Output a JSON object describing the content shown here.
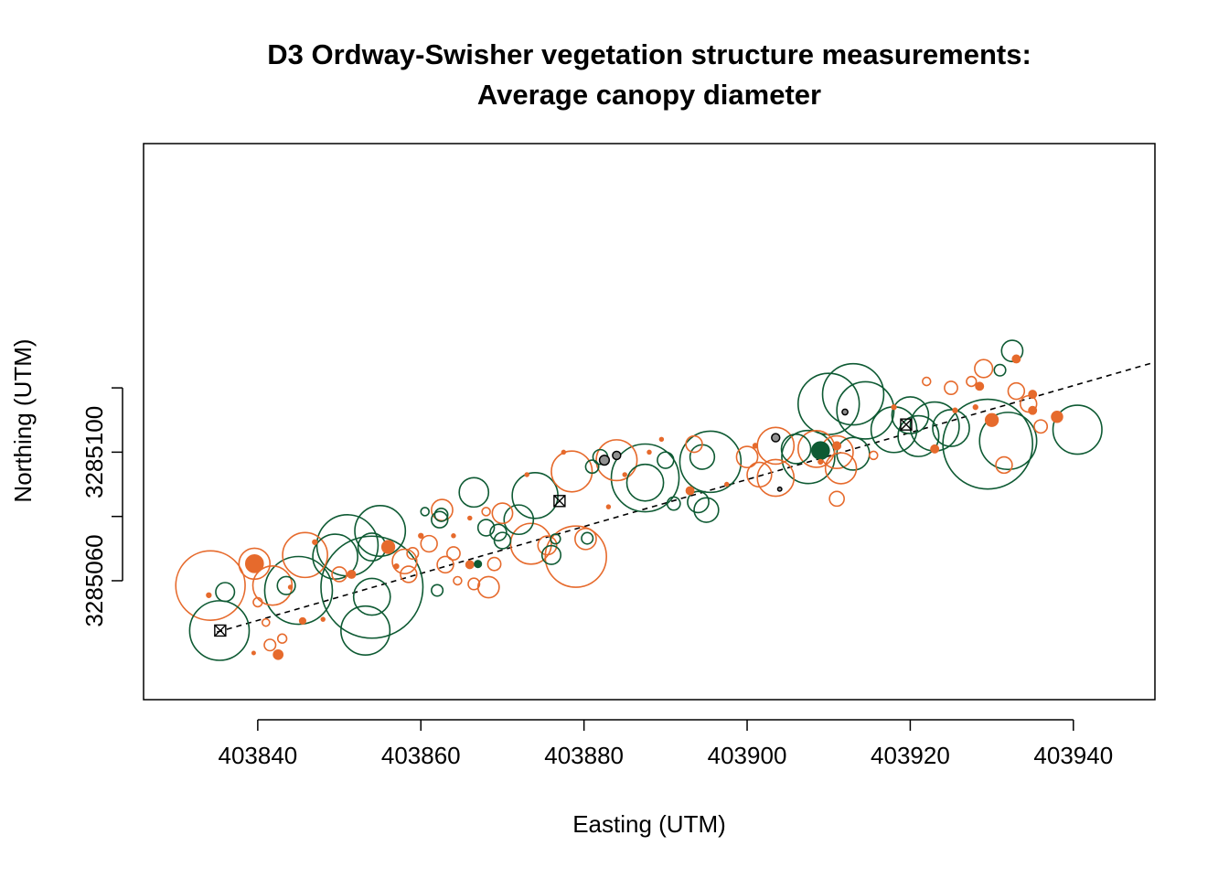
{
  "chart_data": {
    "type": "scatter",
    "title": "D3 Ordway-Swisher vegetation structure measurements:",
    "subtitle": "Average canopy diameter",
    "xlabel": "Easting (UTM)",
    "ylabel": "Northing (UTM)",
    "xlim": [
      403826,
      403950
    ],
    "ylim": [
      3285023,
      3285196
    ],
    "xticks": [
      "403840",
      "403860",
      "403880",
      "403900",
      "403920",
      "403940"
    ],
    "yticks": [
      "3285060",
      "3285100"
    ],
    "yticks_unlabeled": [
      3285080,
      3285120
    ],
    "grid": false,
    "colors": {
      "orange": "#E66A2C",
      "green": "#0E5A33",
      "grey": "#909090",
      "outline": "#000000"
    },
    "transect_line": {
      "x": [
        403835,
        403950
      ],
      "y": [
        3285044,
        3285128
      ],
      "style": "dashed"
    },
    "transect_markers": [
      {
        "x": 403835.4,
        "y": 3285044.5
      },
      {
        "x": 403877.0,
        "y": 3285084.8
      },
      {
        "x": 403919.5,
        "y": 3285108.6
      }
    ],
    "points": [
      {
        "x": 403835.3,
        "y": 3285044.5,
        "d": 7.3,
        "c": "green"
      },
      {
        "x": 403834.2,
        "y": 3285058.5,
        "d": 8.5,
        "c": "orange"
      },
      {
        "x": 403836.0,
        "y": 3285056.5,
        "d": 2.3,
        "c": "green"
      },
      {
        "x": 403834.0,
        "y": 3285055.5,
        "d": 0.6,
        "c": "orange",
        "f": 1
      },
      {
        "x": 403839.6,
        "y": 3285065.3,
        "d": 2.2,
        "c": "orange",
        "f": 1
      },
      {
        "x": 403839.6,
        "y": 3285065.3,
        "d": 3.8,
        "c": "orange"
      },
      {
        "x": 403841.8,
        "y": 3285058.5,
        "d": 4.8,
        "c": "orange"
      },
      {
        "x": 403843.5,
        "y": 3285058.5,
        "d": 2.2,
        "c": "green"
      },
      {
        "x": 403845.8,
        "y": 3285068.0,
        "d": 5.5,
        "c": "orange"
      },
      {
        "x": 403845.0,
        "y": 3285057.0,
        "d": 8.3,
        "c": "green"
      },
      {
        "x": 403840.0,
        "y": 3285053.3,
        "d": 1.1,
        "c": "orange"
      },
      {
        "x": 403841.0,
        "y": 3285047.0,
        "d": 0.9,
        "c": "orange"
      },
      {
        "x": 403843.0,
        "y": 3285042.0,
        "d": 1.1,
        "c": "orange"
      },
      {
        "x": 403841.5,
        "y": 3285040.0,
        "d": 1.4,
        "c": "orange"
      },
      {
        "x": 403842.5,
        "y": 3285037.0,
        "d": 1.2,
        "c": "orange",
        "f": 1
      },
      {
        "x": 403839.5,
        "y": 3285037.5,
        "d": 0.4,
        "c": "orange",
        "f": 1
      },
      {
        "x": 403845.5,
        "y": 3285047.5,
        "d": 0.8,
        "c": "orange",
        "f": 1
      },
      {
        "x": 403851.0,
        "y": 3285071.0,
        "d": 7.5,
        "c": "green"
      },
      {
        "x": 403849.5,
        "y": 3285067.5,
        "d": 5.5,
        "c": "green"
      },
      {
        "x": 403850.0,
        "y": 3285062.0,
        "d": 1.8,
        "c": "orange"
      },
      {
        "x": 403851.5,
        "y": 3285062.0,
        "d": 1.0,
        "c": "orange",
        "f": 1
      },
      {
        "x": 403855.0,
        "y": 3285075.5,
        "d": 6.2,
        "c": "green"
      },
      {
        "x": 403854.0,
        "y": 3285070.5,
        "d": 3.4,
        "c": "green"
      },
      {
        "x": 403854.0,
        "y": 3285058.0,
        "d": 12.5,
        "c": "green"
      },
      {
        "x": 403854.0,
        "y": 3285055.0,
        "d": 4.5,
        "c": "green"
      },
      {
        "x": 403853.2,
        "y": 3285044.5,
        "d": 6.0,
        "c": "green"
      },
      {
        "x": 403858.5,
        "y": 3285062.0,
        "d": 2.0,
        "c": "orange"
      },
      {
        "x": 403858.0,
        "y": 3285066.0,
        "d": 3.0,
        "c": "orange"
      },
      {
        "x": 403856.0,
        "y": 3285070.5,
        "d": 1.6,
        "c": "orange",
        "f": 1
      },
      {
        "x": 403859.0,
        "y": 3285068.5,
        "d": 1.4,
        "c": "orange"
      },
      {
        "x": 403861.0,
        "y": 3285071.5,
        "d": 2.0,
        "c": "orange"
      },
      {
        "x": 403862.0,
        "y": 3285057.0,
        "d": 1.4,
        "c": "green"
      },
      {
        "x": 403863.0,
        "y": 3285065.0,
        "d": 2.0,
        "c": "orange"
      },
      {
        "x": 403864.5,
        "y": 3285060.0,
        "d": 1.0,
        "c": "orange"
      },
      {
        "x": 403862.3,
        "y": 3285079.0,
        "d": 2.0,
        "c": "green"
      },
      {
        "x": 403862.5,
        "y": 3285080.5,
        "d": 1.6,
        "c": "green"
      },
      {
        "x": 403862.6,
        "y": 3285082.0,
        "d": 2.6,
        "c": "orange"
      },
      {
        "x": 403860.5,
        "y": 3285081.5,
        "d": 1.0,
        "c": "green"
      },
      {
        "x": 403864.0,
        "y": 3285068.5,
        "d": 1.6,
        "c": "orange"
      },
      {
        "x": 403866.0,
        "y": 3285065.0,
        "d": 1.0,
        "c": "orange",
        "f": 1
      },
      {
        "x": 403867.0,
        "y": 3285065.2,
        "d": 0.9,
        "c": "green",
        "f": 1
      },
      {
        "x": 403869.0,
        "y": 3285065.2,
        "d": 1.6,
        "c": "orange"
      },
      {
        "x": 403866.5,
        "y": 3285059.0,
        "d": 1.4,
        "c": "orange"
      },
      {
        "x": 403868.3,
        "y": 3285058.0,
        "d": 2.6,
        "c": "orange"
      },
      {
        "x": 403866.5,
        "y": 3285087.5,
        "d": 3.6,
        "c": "green"
      },
      {
        "x": 403868.0,
        "y": 3285081.5,
        "d": 1.0,
        "c": "orange"
      },
      {
        "x": 403870.0,
        "y": 3285081.0,
        "d": 2.5,
        "c": "orange"
      },
      {
        "x": 403868.0,
        "y": 3285076.5,
        "d": 2.0,
        "c": "green"
      },
      {
        "x": 403869.5,
        "y": 3285075.0,
        "d": 2.0,
        "c": "green"
      },
      {
        "x": 403870.0,
        "y": 3285072.5,
        "d": 2.0,
        "c": "green"
      },
      {
        "x": 403872.0,
        "y": 3285079.0,
        "d": 3.6,
        "c": "green"
      },
      {
        "x": 403873.5,
        "y": 3285071.5,
        "d": 5.0,
        "c": "orange"
      },
      {
        "x": 403874.0,
        "y": 3285086.5,
        "d": 5.6,
        "c": "green"
      },
      {
        "x": 403875.5,
        "y": 3285071.0,
        "d": 2.3,
        "c": "orange"
      },
      {
        "x": 403876.0,
        "y": 3285068.0,
        "d": 2.3,
        "c": "green"
      },
      {
        "x": 403876.5,
        "y": 3285073.0,
        "d": 1.2,
        "c": "green"
      },
      {
        "x": 403879.0,
        "y": 3285067.5,
        "d": 7.5,
        "c": "orange"
      },
      {
        "x": 403880.2,
        "y": 3285073.0,
        "d": 2.6,
        "c": "orange"
      },
      {
        "x": 403880.4,
        "y": 3285073.2,
        "d": 1.4,
        "c": "green"
      },
      {
        "x": 403878.5,
        "y": 3285094.0,
        "d": 5.0,
        "c": "orange"
      },
      {
        "x": 403881.0,
        "y": 3285095.5,
        "d": 1.6,
        "c": "green"
      },
      {
        "x": 403882.0,
        "y": 3285098.5,
        "d": 1.8,
        "c": "green"
      },
      {
        "x": 403882.5,
        "y": 3285097.5,
        "d": 1.2,
        "c": "grey",
        "f": 1
      },
      {
        "x": 403884.0,
        "y": 3285097.5,
        "d": 5.0,
        "c": "orange"
      },
      {
        "x": 403884.0,
        "y": 3285099.0,
        "d": 1.0,
        "c": "grey",
        "f": 1
      },
      {
        "x": 403887.5,
        "y": 3285092.0,
        "d": 8.3,
        "c": "green"
      },
      {
        "x": 403887.5,
        "y": 3285090.5,
        "d": 4.5,
        "c": "green"
      },
      {
        "x": 403890.0,
        "y": 3285097.5,
        "d": 2.0,
        "c": "green"
      },
      {
        "x": 403891.0,
        "y": 3285084.0,
        "d": 1.6,
        "c": "green"
      },
      {
        "x": 403893.0,
        "y": 3285088.0,
        "d": 1.0,
        "c": "orange",
        "f": 1
      },
      {
        "x": 403894.5,
        "y": 3285098.5,
        "d": 3.0,
        "c": "green"
      },
      {
        "x": 403893.5,
        "y": 3285102.5,
        "d": 2.0,
        "c": "orange"
      },
      {
        "x": 403894.0,
        "y": 3285084.5,
        "d": 2.6,
        "c": "green"
      },
      {
        "x": 403895.0,
        "y": 3285082.0,
        "d": 3.0,
        "c": "green"
      },
      {
        "x": 403895.5,
        "y": 3285097.0,
        "d": 7.5,
        "c": "green"
      },
      {
        "x": 403900.0,
        "y": 3285098.5,
        "d": 2.6,
        "c": "orange"
      },
      {
        "x": 403901.5,
        "y": 3285093.0,
        "d": 3.0,
        "c": "orange"
      },
      {
        "x": 403903.5,
        "y": 3285102.0,
        "d": 4.5,
        "c": "orange"
      },
      {
        "x": 403903.5,
        "y": 3285092.0,
        "d": 4.5,
        "c": "orange"
      },
      {
        "x": 403903.5,
        "y": 3285104.5,
        "d": 1.0,
        "c": "grey",
        "f": 1
      },
      {
        "x": 403904.0,
        "y": 3285088.5,
        "d": 0.5,
        "c": "grey",
        "f": 1
      },
      {
        "x": 403906.0,
        "y": 3285101.0,
        "d": 3.6,
        "c": "green"
      },
      {
        "x": 403907.5,
        "y": 3285098.5,
        "d": 6.5,
        "c": "green"
      },
      {
        "x": 403908.5,
        "y": 3285101.0,
        "d": 4.5,
        "c": "orange"
      },
      {
        "x": 403909.0,
        "y": 3285100.5,
        "d": 2.2,
        "c": "green",
        "f": 1
      },
      {
        "x": 403911.0,
        "y": 3285085.5,
        "d": 1.8,
        "c": "orange"
      },
      {
        "x": 403911.0,
        "y": 3285100.0,
        "d": 4.0,
        "c": "orange"
      },
      {
        "x": 403911.5,
        "y": 3285095.0,
        "d": 3.8,
        "c": "orange"
      },
      {
        "x": 403911.0,
        "y": 3285102.0,
        "d": 1.0,
        "c": "orange",
        "f": 1
      },
      {
        "x": 403912.0,
        "y": 3285112.5,
        "d": 0.7,
        "c": "grey",
        "f": 1
      },
      {
        "x": 403913.0,
        "y": 3285099.5,
        "d": 4.0,
        "c": "green"
      },
      {
        "x": 403910.0,
        "y": 3285115.0,
        "d": 7.5,
        "c": "green"
      },
      {
        "x": 403913.0,
        "y": 3285118.0,
        "d": 7.5,
        "c": "green"
      },
      {
        "x": 403914.5,
        "y": 3285113.0,
        "d": 7.0,
        "c": "green"
      },
      {
        "x": 403918.0,
        "y": 3285107.0,
        "d": 5.6,
        "c": "green"
      },
      {
        "x": 403920.0,
        "y": 3285111.5,
        "d": 4.5,
        "c": "green"
      },
      {
        "x": 403921.0,
        "y": 3285105.0,
        "d": 5.0,
        "c": "green"
      },
      {
        "x": 403923.0,
        "y": 3285108.0,
        "d": 6.0,
        "c": "green"
      },
      {
        "x": 403925.0,
        "y": 3285107.5,
        "d": 4.5,
        "c": "green"
      },
      {
        "x": 403929.5,
        "y": 3285102.5,
        "d": 11.0,
        "c": "green"
      },
      {
        "x": 403932.0,
        "y": 3285103.5,
        "d": 7.0,
        "c": "green"
      },
      {
        "x": 403931.5,
        "y": 3285096.0,
        "d": 2.0,
        "c": "orange"
      },
      {
        "x": 403934.5,
        "y": 3285115.0,
        "d": 2.0,
        "c": "orange"
      },
      {
        "x": 403935.0,
        "y": 3285113.0,
        "d": 1.0,
        "c": "orange",
        "f": 1
      },
      {
        "x": 403936.0,
        "y": 3285108.0,
        "d": 1.6,
        "c": "orange"
      },
      {
        "x": 403940.5,
        "y": 3285107.0,
        "d": 6.0,
        "c": "green"
      },
      {
        "x": 403938.0,
        "y": 3285111.0,
        "d": 1.4,
        "c": "orange",
        "f": 1
      },
      {
        "x": 403927.5,
        "y": 3285122.0,
        "d": 1.2,
        "c": "orange"
      },
      {
        "x": 403929.0,
        "y": 3285126.0,
        "d": 2.2,
        "c": "orange"
      },
      {
        "x": 403931.0,
        "y": 3285125.5,
        "d": 1.4,
        "c": "green"
      },
      {
        "x": 403932.5,
        "y": 3285131.5,
        "d": 2.6,
        "c": "green"
      },
      {
        "x": 403933.0,
        "y": 3285129.0,
        "d": 1.0,
        "c": "orange",
        "f": 1
      },
      {
        "x": 403935.0,
        "y": 3285118.0,
        "d": 1.0,
        "c": "orange",
        "f": 1
      },
      {
        "x": 403933.0,
        "y": 3285119.0,
        "d": 2.0,
        "c": "orange"
      },
      {
        "x": 403928.5,
        "y": 3285120.5,
        "d": 1.0,
        "c": "orange",
        "f": 1
      },
      {
        "x": 403922.0,
        "y": 3285122.0,
        "d": 1.0,
        "c": "orange"
      },
      {
        "x": 403925.0,
        "y": 3285120.0,
        "d": 1.6,
        "c": "orange"
      },
      {
        "x": 403930.0,
        "y": 3285110.0,
        "d": 1.6,
        "c": "orange",
        "f": 1
      },
      {
        "x": 403928.0,
        "y": 3285114.0,
        "d": 0.6,
        "c": "orange",
        "f": 1
      },
      {
        "x": 403925.5,
        "y": 3285113.0,
        "d": 0.6,
        "c": "orange",
        "f": 1
      },
      {
        "x": 403918.0,
        "y": 3285114.0,
        "d": 0.6,
        "c": "orange",
        "f": 1
      },
      {
        "x": 403923.0,
        "y": 3285101.0,
        "d": 1.0,
        "c": "orange",
        "f": 1
      },
      {
        "x": 403915.5,
        "y": 3285099.0,
        "d": 1.0,
        "c": "orange"
      },
      {
        "x": 403909.0,
        "y": 3285097.0,
        "d": 0.6,
        "c": "orange",
        "f": 1
      },
      {
        "x": 403901.0,
        "y": 3285102.0,
        "d": 0.6,
        "c": "orange",
        "f": 1
      },
      {
        "x": 403897.5,
        "y": 3285090.0,
        "d": 0.5,
        "c": "orange",
        "f": 1
      },
      {
        "x": 403889.5,
        "y": 3285104.0,
        "d": 0.5,
        "c": "orange",
        "f": 1
      },
      {
        "x": 403888.0,
        "y": 3285100.0,
        "d": 0.5,
        "c": "orange",
        "f": 1
      },
      {
        "x": 403885.0,
        "y": 3285093.0,
        "d": 0.5,
        "c": "orange",
        "f": 1
      },
      {
        "x": 403883.0,
        "y": 3285083.0,
        "d": 0.5,
        "c": "orange",
        "f": 1
      },
      {
        "x": 403877.5,
        "y": 3285100.0,
        "d": 0.5,
        "c": "orange",
        "f": 1
      },
      {
        "x": 403873.0,
        "y": 3285093.0,
        "d": 0.5,
        "c": "orange",
        "f": 1
      },
      {
        "x": 403866.0,
        "y": 3285079.5,
        "d": 0.5,
        "c": "orange",
        "f": 1
      },
      {
        "x": 403864.0,
        "y": 3285074.0,
        "d": 0.5,
        "c": "orange",
        "f": 1
      },
      {
        "x": 403860.0,
        "y": 3285074.0,
        "d": 0.6,
        "c": "orange",
        "f": 1
      },
      {
        "x": 403857.0,
        "y": 3285064.5,
        "d": 0.6,
        "c": "orange",
        "f": 1
      },
      {
        "x": 403847.0,
        "y": 3285072.0,
        "d": 0.6,
        "c": "orange",
        "f": 1
      },
      {
        "x": 403844.0,
        "y": 3285058.0,
        "d": 0.5,
        "c": "orange",
        "f": 1
      },
      {
        "x": 403848.0,
        "y": 3285048.0,
        "d": 0.5,
        "c": "orange",
        "f": 1
      }
    ]
  }
}
